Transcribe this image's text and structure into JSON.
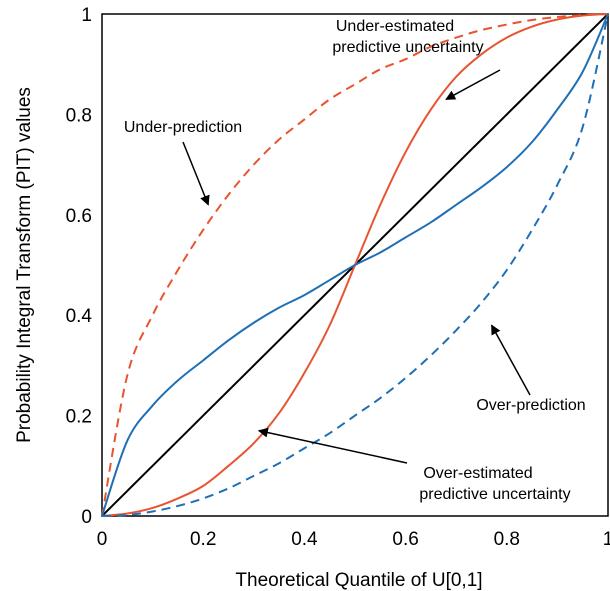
{
  "chart_data": {
    "type": "line",
    "title": "",
    "xlabel": "Theoretical Quantile of U[0,1]",
    "ylabel": "Probability Integral Transform (PIT) values",
    "xlim": [
      0,
      1
    ],
    "ylim": [
      0,
      1
    ],
    "grid": false,
    "x_ticks": [
      "0",
      "0.2",
      "0.4",
      "0.6",
      "0.8",
      "1"
    ],
    "y_ticks": [
      "0",
      "0.2",
      "0.4",
      "0.6",
      "0.8",
      "1"
    ],
    "x": [
      0,
      0.05,
      0.1,
      0.15,
      0.2,
      0.25,
      0.3,
      0.35,
      0.4,
      0.45,
      0.5,
      0.55,
      0.6,
      0.65,
      0.7,
      0.75,
      0.8,
      0.85,
      0.9,
      0.95,
      1
    ],
    "series": [
      {
        "color": "#000000",
        "dash": false,
        "values": [
          0,
          0.05,
          0.1,
          0.15,
          0.2,
          0.25,
          0.3,
          0.35,
          0.4,
          0.45,
          0.5,
          0.55,
          0.6,
          0.65,
          0.7,
          0.75,
          0.8,
          0.85,
          0.9,
          0.95,
          1
        ]
      },
      {
        "color": "#e8542f",
        "dash": true,
        "values": [
          0,
          0.28,
          0.4,
          0.49,
          0.57,
          0.64,
          0.7,
          0.75,
          0.79,
          0.83,
          0.86,
          0.89,
          0.91,
          0.935,
          0.953,
          0.968,
          0.979,
          0.988,
          0.994,
          0.998,
          1
        ]
      },
      {
        "color": "#e8542f",
        "dash": false,
        "values": [
          0,
          0.005,
          0.016,
          0.035,
          0.06,
          0.1,
          0.145,
          0.205,
          0.285,
          0.38,
          0.5,
          0.62,
          0.725,
          0.81,
          0.875,
          0.92,
          0.953,
          0.975,
          0.989,
          0.997,
          1
        ]
      },
      {
        "color": "#1f6fb5",
        "dash": false,
        "values": [
          0,
          0.15,
          0.22,
          0.27,
          0.31,
          0.35,
          0.385,
          0.415,
          0.44,
          0.47,
          0.5,
          0.525,
          0.555,
          0.585,
          0.62,
          0.655,
          0.695,
          0.745,
          0.81,
          0.885,
          1
        ]
      },
      {
        "color": "#1f6fb5",
        "dash": true,
        "values": [
          0,
          0.002,
          0.009,
          0.02,
          0.035,
          0.055,
          0.08,
          0.105,
          0.135,
          0.165,
          0.2,
          0.235,
          0.275,
          0.32,
          0.37,
          0.425,
          0.49,
          0.57,
          0.66,
          0.775,
          1
        ]
      }
    ],
    "annotations": [
      {
        "lines": [
          "Under-estimated",
          "predictive uncertainty"
        ],
        "point": [
          0.68,
          0.83
        ]
      },
      {
        "lines": [
          "Under-prediction"
        ],
        "point": [
          0.21,
          0.62
        ]
      },
      {
        "lines": [
          "Over-prediction"
        ],
        "point": [
          0.77,
          0.38
        ]
      },
      {
        "lines": [
          "Over-estimated",
          "predictive uncertainty"
        ],
        "point": [
          0.31,
          0.17
        ]
      }
    ]
  }
}
